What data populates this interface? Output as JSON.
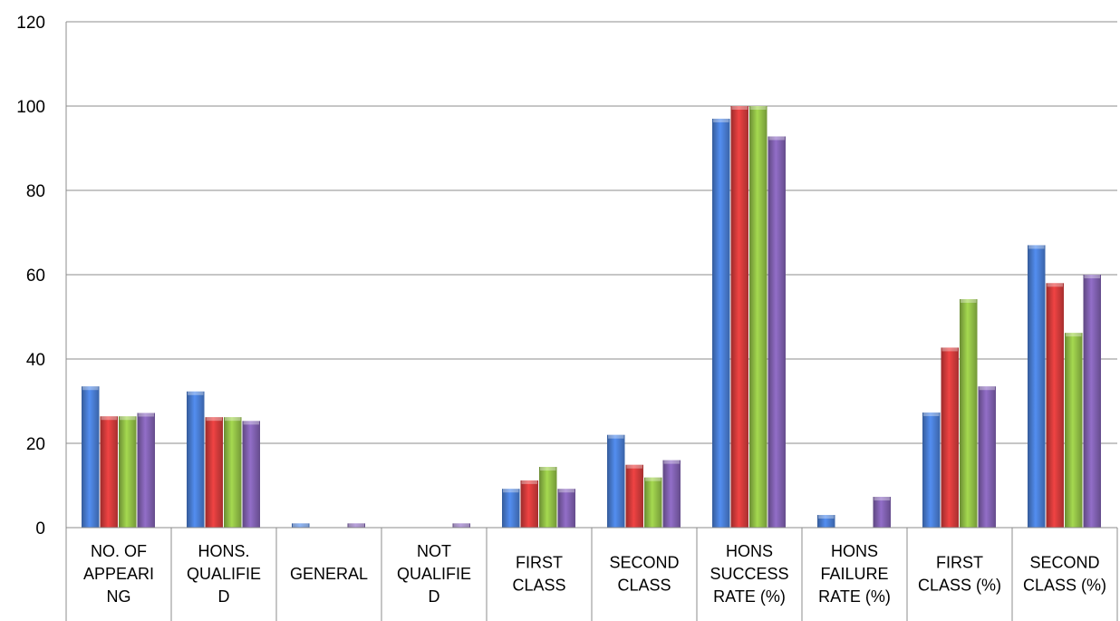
{
  "chart_data": {
    "type": "bar",
    "title": "",
    "xlabel": "",
    "ylabel": "",
    "ylim": [
      0,
      120
    ],
    "yticks": [
      0,
      20,
      40,
      60,
      80,
      100,
      120
    ],
    "grid": true,
    "legend": "none",
    "categories": [
      [
        "NO. OF",
        "APPEARI",
        "NG"
      ],
      [
        "HONS.",
        "QUALIFIE",
        "D"
      ],
      [
        "GENERAL"
      ],
      [
        "NOT",
        "QUALIFIE",
        "D"
      ],
      [
        "FIRST",
        "CLASS"
      ],
      [
        "SECOND",
        "CLASS"
      ],
      [
        "HONS",
        "SUCCESS",
        "RATE (%)"
      ],
      [
        "HONS",
        "FAILURE",
        "RATE (%)"
      ],
      [
        "FIRST",
        "CLASS (%)"
      ],
      [
        "SECOND",
        "CLASS (%)"
      ]
    ],
    "series": [
      {
        "color": "#4a7fd6",
        "values": [
          33.5,
          32.3,
          1,
          0,
          9.2,
          22,
          97,
          3,
          27.3,
          67
        ]
      },
      {
        "color": "#d63c3c",
        "values": [
          26.4,
          26.2,
          0,
          0,
          11.2,
          14.9,
          100,
          0,
          42.7,
          58
        ]
      },
      {
        "color": "#93c247",
        "values": [
          26.4,
          26.2,
          0,
          0,
          14.4,
          11.9,
          100,
          0,
          54.2,
          46.2
        ]
      },
      {
        "color": "#8262b3",
        "values": [
          27.2,
          25.3,
          1,
          1,
          9.2,
          16,
          92.8,
          7.3,
          33.5,
          60
        ]
      }
    ]
  }
}
